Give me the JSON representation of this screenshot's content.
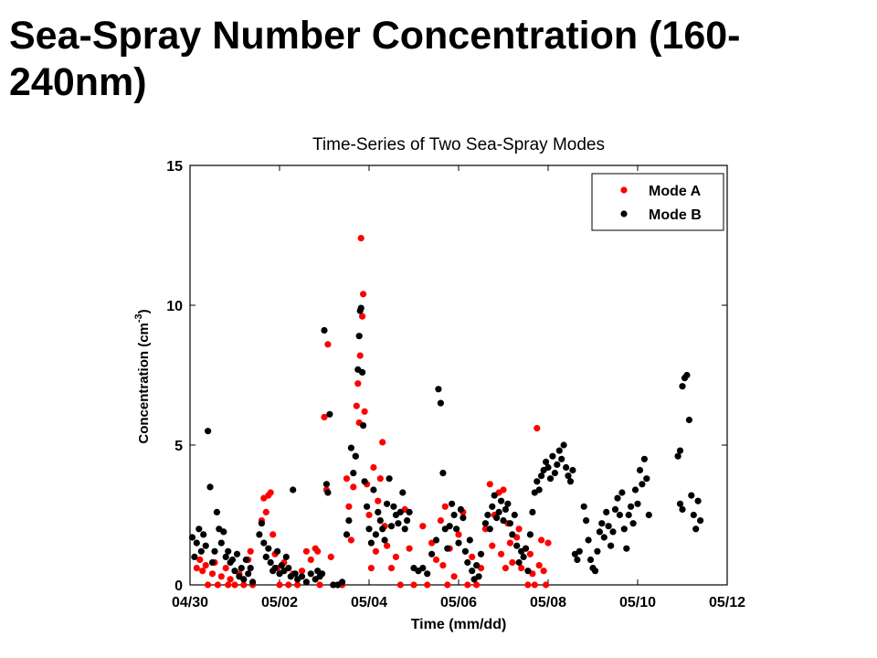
{
  "slide": {
    "title": "Sea-Spray Number Concentration (160-240nm)"
  },
  "chart_data": {
    "type": "scatter",
    "title": "Time-Series of Two Sea-Spray Modes",
    "xlabel": "Time (mm/dd)",
    "ylabel": "Concentration (cm",
    "ylabel_sup": "-3",
    "ylabel_tail": ")",
    "x_ticks": [
      "04/30",
      "05/02",
      "05/04",
      "05/06",
      "05/08",
      "05/10",
      "05/12"
    ],
    "y_ticks": [
      "0",
      "5",
      "10",
      "15"
    ],
    "x_unit": "days since 04/30",
    "xlim": [
      0,
      12
    ],
    "ylim": [
      0,
      15
    ],
    "legend_position": "top-right",
    "series": [
      {
        "name": "Mode A",
        "color": "#ff0000",
        "points": [
          [
            0.15,
            0.6
          ],
          [
            0.22,
            0.9
          ],
          [
            0.28,
            0.5
          ],
          [
            0.35,
            0.7
          ],
          [
            0.4,
            0.0
          ],
          [
            0.5,
            0.4
          ],
          [
            0.55,
            0.8
          ],
          [
            0.62,
            0.0
          ],
          [
            0.7,
            0.3
          ],
          [
            0.8,
            0.6
          ],
          [
            0.85,
            0.0
          ],
          [
            0.9,
            0.2
          ],
          [
            1.0,
            0.0
          ],
          [
            1.1,
            0.4
          ],
          [
            1.2,
            0.0
          ],
          [
            1.3,
            0.9
          ],
          [
            1.35,
            1.2
          ],
          [
            1.4,
            0.0
          ],
          [
            1.6,
            2.3
          ],
          [
            1.65,
            3.1
          ],
          [
            1.7,
            2.6
          ],
          [
            1.75,
            3.2
          ],
          [
            1.8,
            3.3
          ],
          [
            1.85,
            1.8
          ],
          [
            1.9,
            1.1
          ],
          [
            1.95,
            0.6
          ],
          [
            2.0,
            0.0
          ],
          [
            2.1,
            0.8
          ],
          [
            2.2,
            0.0
          ],
          [
            2.3,
            0.4
          ],
          [
            2.4,
            0.0
          ],
          [
            2.5,
            0.5
          ],
          [
            2.6,
            1.2
          ],
          [
            2.7,
            0.9
          ],
          [
            2.8,
            1.3
          ],
          [
            2.85,
            1.2
          ],
          [
            2.9,
            0.0
          ],
          [
            3.0,
            6.0
          ],
          [
            3.05,
            3.4
          ],
          [
            3.08,
            8.6
          ],
          [
            3.15,
            1.0
          ],
          [
            3.2,
            0.0
          ],
          [
            3.3,
            0.0
          ],
          [
            3.4,
            0.0
          ],
          [
            3.5,
            3.8
          ],
          [
            3.55,
            2.8
          ],
          [
            3.6,
            1.6
          ],
          [
            3.65,
            3.5
          ],
          [
            3.7,
            4.6
          ],
          [
            3.72,
            6.4
          ],
          [
            3.75,
            7.2
          ],
          [
            3.78,
            5.8
          ],
          [
            3.8,
            8.2
          ],
          [
            3.82,
            12.4
          ],
          [
            3.85,
            9.6
          ],
          [
            3.87,
            10.4
          ],
          [
            3.9,
            6.2
          ],
          [
            3.95,
            3.6
          ],
          [
            4.0,
            2.5
          ],
          [
            4.05,
            0.6
          ],
          [
            4.1,
            4.2
          ],
          [
            4.15,
            1.2
          ],
          [
            4.2,
            3.0
          ],
          [
            4.25,
            3.8
          ],
          [
            4.3,
            5.1
          ],
          [
            4.35,
            2.1
          ],
          [
            4.4,
            1.4
          ],
          [
            4.5,
            0.6
          ],
          [
            4.6,
            1.0
          ],
          [
            4.7,
            0.0
          ],
          [
            4.8,
            2.7
          ],
          [
            4.9,
            1.3
          ],
          [
            5.0,
            0.0
          ],
          [
            5.1,
            0.5
          ],
          [
            5.2,
            2.1
          ],
          [
            5.3,
            0.0
          ],
          [
            5.4,
            1.5
          ],
          [
            5.5,
            0.9
          ],
          [
            5.6,
            2.3
          ],
          [
            5.65,
            0.7
          ],
          [
            5.7,
            2.8
          ],
          [
            5.75,
            0.0
          ],
          [
            5.8,
            1.3
          ],
          [
            5.9,
            0.3
          ],
          [
            6.0,
            1.8
          ],
          [
            6.1,
            2.6
          ],
          [
            6.2,
            0.0
          ],
          [
            6.3,
            1.0
          ],
          [
            6.4,
            0.0
          ],
          [
            6.5,
            0.6
          ],
          [
            6.6,
            2.0
          ],
          [
            6.7,
            3.6
          ],
          [
            6.75,
            1.4
          ],
          [
            6.8,
            2.5
          ],
          [
            6.9,
            3.3
          ],
          [
            6.95,
            1.1
          ],
          [
            7.0,
            3.4
          ],
          [
            7.05,
            0.6
          ],
          [
            7.1,
            2.2
          ],
          [
            7.15,
            1.5
          ],
          [
            7.2,
            0.8
          ],
          [
            7.3,
            1.7
          ],
          [
            7.35,
            2.0
          ],
          [
            7.4,
            0.6
          ],
          [
            7.5,
            1.3
          ],
          [
            7.55,
            0.0
          ],
          [
            7.6,
            1.1
          ],
          [
            7.65,
            0.4
          ],
          [
            7.7,
            0.0
          ],
          [
            7.75,
            5.6
          ],
          [
            7.8,
            0.7
          ],
          [
            7.85,
            1.6
          ],
          [
            7.9,
            0.5
          ],
          [
            7.95,
            0.0
          ],
          [
            8.0,
            1.5
          ]
        ]
      },
      {
        "name": "Mode B",
        "color": "#000000",
        "points": [
          [
            0.05,
            1.7
          ],
          [
            0.1,
            1.0
          ],
          [
            0.15,
            1.5
          ],
          [
            0.2,
            2.0
          ],
          [
            0.25,
            1.2
          ],
          [
            0.3,
            1.8
          ],
          [
            0.35,
            1.4
          ],
          [
            0.4,
            5.5
          ],
          [
            0.45,
            3.5
          ],
          [
            0.5,
            0.8
          ],
          [
            0.55,
            1.2
          ],
          [
            0.6,
            2.6
          ],
          [
            0.65,
            2.0
          ],
          [
            0.7,
            1.5
          ],
          [
            0.75,
            1.9
          ],
          [
            0.8,
            1.0
          ],
          [
            0.85,
            1.2
          ],
          [
            0.9,
            0.8
          ],
          [
            0.95,
            0.9
          ],
          [
            1.0,
            0.5
          ],
          [
            1.05,
            1.1
          ],
          [
            1.1,
            0.3
          ],
          [
            1.15,
            0.6
          ],
          [
            1.2,
            0.2
          ],
          [
            1.25,
            0.9
          ],
          [
            1.3,
            0.4
          ],
          [
            1.35,
            0.6
          ],
          [
            1.4,
            0.1
          ],
          [
            1.55,
            1.8
          ],
          [
            1.6,
            2.2
          ],
          [
            1.65,
            1.5
          ],
          [
            1.7,
            1.0
          ],
          [
            1.75,
            1.3
          ],
          [
            1.8,
            0.8
          ],
          [
            1.85,
            0.5
          ],
          [
            1.9,
            0.6
          ],
          [
            1.95,
            1.2
          ],
          [
            2.0,
            0.4
          ],
          [
            2.05,
            0.7
          ],
          [
            2.1,
            0.5
          ],
          [
            2.15,
            1.0
          ],
          [
            2.2,
            0.6
          ],
          [
            2.25,
            0.3
          ],
          [
            2.3,
            3.4
          ],
          [
            2.35,
            0.4
          ],
          [
            2.4,
            0.2
          ],
          [
            2.5,
            0.3
          ],
          [
            2.6,
            0.1
          ],
          [
            2.7,
            0.4
          ],
          [
            2.8,
            0.2
          ],
          [
            2.85,
            0.5
          ],
          [
            2.9,
            0.3
          ],
          [
            2.95,
            0.4
          ],
          [
            3.0,
            9.1
          ],
          [
            3.05,
            3.6
          ],
          [
            3.08,
            3.3
          ],
          [
            3.12,
            6.1
          ],
          [
            3.2,
            0.0
          ],
          [
            3.3,
            0.0
          ],
          [
            3.4,
            0.1
          ],
          [
            3.5,
            1.8
          ],
          [
            3.55,
            2.3
          ],
          [
            3.6,
            4.9
          ],
          [
            3.65,
            4.0
          ],
          [
            3.7,
            4.6
          ],
          [
            3.75,
            7.7
          ],
          [
            3.78,
            8.9
          ],
          [
            3.8,
            9.8
          ],
          [
            3.82,
            9.9
          ],
          [
            3.85,
            7.6
          ],
          [
            3.87,
            5.7
          ],
          [
            3.9,
            3.7
          ],
          [
            3.95,
            2.8
          ],
          [
            4.0,
            2.0
          ],
          [
            4.05,
            1.5
          ],
          [
            4.1,
            3.4
          ],
          [
            4.15,
            1.8
          ],
          [
            4.2,
            2.6
          ],
          [
            4.25,
            2.3
          ],
          [
            4.3,
            2.0
          ],
          [
            4.35,
            1.6
          ],
          [
            4.4,
            2.9
          ],
          [
            4.45,
            3.8
          ],
          [
            4.5,
            2.1
          ],
          [
            4.55,
            2.8
          ],
          [
            4.6,
            2.5
          ],
          [
            4.65,
            2.2
          ],
          [
            4.7,
            2.6
          ],
          [
            4.75,
            3.3
          ],
          [
            4.8,
            2.0
          ],
          [
            4.85,
            2.3
          ],
          [
            4.9,
            2.6
          ],
          [
            5.0,
            0.6
          ],
          [
            5.1,
            0.5
          ],
          [
            5.2,
            0.6
          ],
          [
            5.3,
            0.4
          ],
          [
            5.4,
            1.1
          ],
          [
            5.5,
            1.6
          ],
          [
            5.55,
            7.0
          ],
          [
            5.6,
            6.5
          ],
          [
            5.65,
            4.0
          ],
          [
            5.7,
            2.0
          ],
          [
            5.75,
            1.3
          ],
          [
            5.8,
            2.1
          ],
          [
            5.85,
            2.9
          ],
          [
            5.9,
            2.5
          ],
          [
            5.95,
            2.0
          ],
          [
            6.0,
            1.5
          ],
          [
            6.05,
            2.7
          ],
          [
            6.1,
            2.4
          ],
          [
            6.15,
            1.2
          ],
          [
            6.2,
            0.8
          ],
          [
            6.25,
            1.6
          ],
          [
            6.3,
            0.5
          ],
          [
            6.35,
            0.2
          ],
          [
            6.4,
            0.7
          ],
          [
            6.45,
            0.3
          ],
          [
            6.5,
            1.1
          ],
          [
            6.6,
            2.2
          ],
          [
            6.65,
            2.5
          ],
          [
            6.7,
            2.0
          ],
          [
            6.75,
            2.8
          ],
          [
            6.8,
            3.2
          ],
          [
            6.85,
            2.4
          ],
          [
            6.9,
            2.6
          ],
          [
            6.95,
            3.0
          ],
          [
            7.0,
            2.3
          ],
          [
            7.05,
            2.7
          ],
          [
            7.1,
            2.9
          ],
          [
            7.15,
            2.2
          ],
          [
            7.2,
            1.8
          ],
          [
            7.25,
            2.5
          ],
          [
            7.3,
            1.4
          ],
          [
            7.35,
            0.8
          ],
          [
            7.4,
            1.2
          ],
          [
            7.45,
            1.0
          ],
          [
            7.5,
            1.3
          ],
          [
            7.55,
            0.5
          ],
          [
            7.6,
            1.8
          ],
          [
            7.65,
            2.6
          ],
          [
            7.7,
            3.3
          ],
          [
            7.75,
            3.7
          ],
          [
            7.8,
            3.4
          ],
          [
            7.85,
            3.9
          ],
          [
            7.9,
            4.1
          ],
          [
            7.95,
            4.4
          ],
          [
            8.0,
            4.2
          ],
          [
            8.05,
            3.8
          ],
          [
            8.1,
            4.6
          ],
          [
            8.15,
            4.0
          ],
          [
            8.2,
            4.3
          ],
          [
            8.25,
            4.8
          ],
          [
            8.3,
            4.5
          ],
          [
            8.35,
            5.0
          ],
          [
            8.4,
            4.2
          ],
          [
            8.45,
            3.9
          ],
          [
            8.5,
            3.7
          ],
          [
            8.55,
            4.1
          ],
          [
            8.6,
            1.1
          ],
          [
            8.65,
            0.9
          ],
          [
            8.7,
            1.2
          ],
          [
            8.8,
            2.8
          ],
          [
            8.85,
            2.3
          ],
          [
            8.9,
            1.6
          ],
          [
            8.95,
            0.9
          ],
          [
            9.0,
            0.6
          ],
          [
            9.05,
            0.5
          ],
          [
            9.1,
            1.2
          ],
          [
            9.15,
            1.9
          ],
          [
            9.2,
            2.2
          ],
          [
            9.25,
            1.7
          ],
          [
            9.3,
            2.6
          ],
          [
            9.35,
            2.1
          ],
          [
            9.4,
            1.4
          ],
          [
            9.45,
            1.9
          ],
          [
            9.5,
            2.7
          ],
          [
            9.55,
            3.1
          ],
          [
            9.6,
            2.5
          ],
          [
            9.65,
            3.3
          ],
          [
            9.7,
            2.0
          ],
          [
            9.75,
            1.3
          ],
          [
            9.8,
            2.5
          ],
          [
            9.85,
            2.8
          ],
          [
            9.9,
            2.2
          ],
          [
            9.95,
            3.4
          ],
          [
            10.0,
            2.9
          ],
          [
            10.05,
            4.1
          ],
          [
            10.1,
            3.6
          ],
          [
            10.15,
            4.5
          ],
          [
            10.2,
            3.8
          ],
          [
            10.25,
            2.5
          ],
          [
            10.9,
            4.6
          ],
          [
            10.95,
            4.8
          ],
          [
            11.0,
            7.1
          ],
          [
            11.05,
            7.4
          ],
          [
            11.1,
            7.5
          ],
          [
            11.15,
            5.9
          ],
          [
            11.2,
            3.2
          ],
          [
            11.25,
            2.5
          ],
          [
            11.3,
            2.0
          ],
          [
            11.35,
            3.0
          ],
          [
            11.4,
            2.3
          ],
          [
            10.95,
            2.9
          ],
          [
            11.0,
            2.7
          ]
        ]
      }
    ]
  }
}
